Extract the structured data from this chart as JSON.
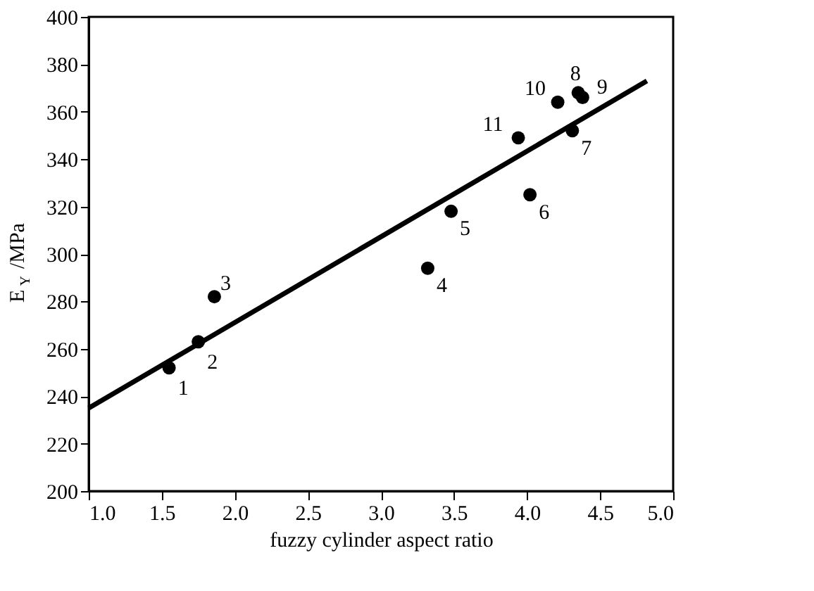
{
  "chart_data": {
    "type": "scatter",
    "xlabel": "fuzzy cylinder aspect ratio",
    "ylabel": "E$_{Y}$ /MPa",
    "xlim": [
      1.0,
      5.0
    ],
    "ylim": [
      200,
      400
    ],
    "xticks": [
      {
        "value": 1.0,
        "label": "1.0"
      },
      {
        "value": 1.5,
        "label": "1.5"
      },
      {
        "value": 2.0,
        "label": "2.0"
      },
      {
        "value": 2.5,
        "label": "2.5"
      },
      {
        "value": 3.0,
        "label": "3.0"
      },
      {
        "value": 3.5,
        "label": "3.5"
      },
      {
        "value": 4.0,
        "label": "4.0"
      },
      {
        "value": 4.5,
        "label": "4.5"
      },
      {
        "value": 5.0,
        "label": "5.0"
      }
    ],
    "yticks": [
      200,
      220,
      240,
      260,
      280,
      300,
      320,
      340,
      360,
      380,
      400
    ],
    "grid": false,
    "marker": "circle",
    "series": [
      {
        "color": "#000000",
        "x": [
          1.55,
          1.75,
          1.86,
          3.32,
          3.48,
          4.02,
          4.31,
          4.35,
          4.38,
          4.21,
          3.94
        ],
        "values": [
          252,
          263,
          282,
          294,
          318,
          325,
          352,
          368,
          366,
          364,
          349
        ]
      },
      {
        "type": "line",
        "color": "#000000",
        "line_style": "solid",
        "marker": "none",
        "x": [
          1.0,
          4.82
        ],
        "values": [
          235,
          373
        ]
      }
    ],
    "annotations": [
      {
        "text": "1",
        "x": 1.55,
        "y": 252
      },
      {
        "text": "2",
        "x": 1.75,
        "y": 263
      },
      {
        "text": "3",
        "x": 1.86,
        "y": 282
      },
      {
        "text": "4",
        "x": 3.32,
        "y": 294
      },
      {
        "text": "5",
        "x": 3.48,
        "y": 318
      },
      {
        "text": "6",
        "x": 4.02,
        "y": 325
      },
      {
        "text": "7",
        "x": 4.31,
        "y": 352
      },
      {
        "text": "8",
        "x": 4.35,
        "y": 368
      },
      {
        "text": "9",
        "x": 4.38,
        "y": 366
      },
      {
        "text": "10",
        "x": 4.21,
        "y": 364
      },
      {
        "text": "11",
        "x": 3.94,
        "y": 349
      }
    ]
  }
}
